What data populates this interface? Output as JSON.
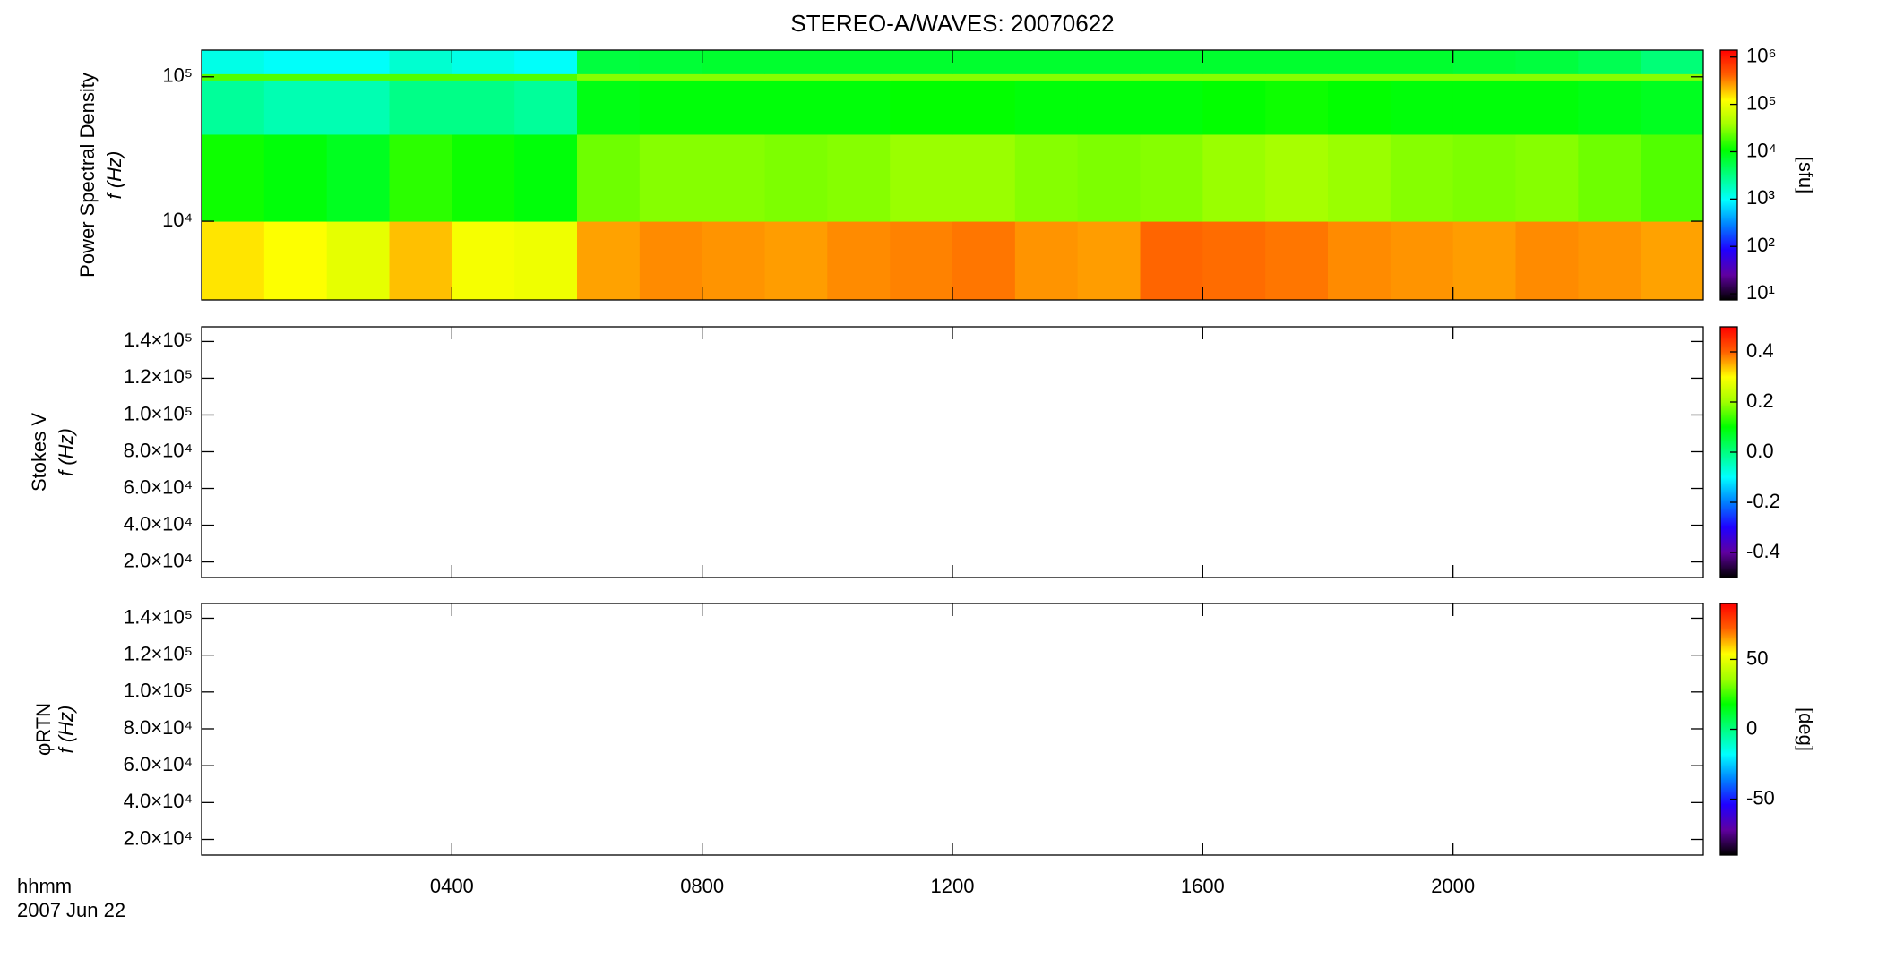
{
  "chart_data": [
    {
      "type": "heatmap",
      "title": "STEREO-A/WAVES: 20070622",
      "ylabel": [
        "Power Spectral Density",
        "f (Hz)"
      ],
      "x": [
        0,
        1,
        2,
        3,
        4,
        5,
        6,
        7,
        8,
        9,
        10,
        11,
        12,
        13,
        14,
        15,
        16,
        17,
        18,
        19,
        20,
        21,
        22,
        23,
        24
      ],
      "y": [
        2850,
        10000,
        40000,
        95000,
        105000,
        153000
      ],
      "values": [
        [
          150000,
          120000,
          90000,
          200000,
          110000,
          100000,
          250000,
          300000,
          280000,
          260000,
          300000,
          320000,
          350000,
          280000,
          260000,
          400000,
          380000,
          350000,
          300000,
          280000,
          260000,
          300000,
          280000,
          250000
        ],
        [
          12000,
          10000,
          8000,
          15000,
          12000,
          10000,
          25000,
          30000,
          30000,
          28000,
          30000,
          35000,
          35000,
          30000,
          28000,
          30000,
          35000,
          40000,
          35000,
          30000,
          28000,
          30000,
          25000,
          20000
        ],
        [
          2500,
          2000,
          2000,
          3000,
          3000,
          2500,
          9000,
          10000,
          10000,
          10000,
          10000,
          11000,
          11000,
          10000,
          10000,
          10000,
          11000,
          12000,
          11000,
          10000,
          10000,
          10000,
          9000,
          8000
        ],
        [
          20000,
          20000,
          20000,
          20000,
          20000,
          20000,
          30000,
          30000,
          30000,
          30000,
          30000,
          30000,
          30000,
          30000,
          30000,
          30000,
          30000,
          30000,
          30000,
          30000,
          30000,
          30000,
          30000,
          30000
        ],
        [
          1200,
          1000,
          1000,
          1500,
          1200,
          1000,
          6000,
          6500,
          7000,
          7000,
          7000,
          7000,
          7000,
          7000,
          7000,
          7000,
          7000,
          7000,
          7000,
          7000,
          6500,
          6000,
          5000,
          3500
        ]
      ],
      "ylim": [
        2850,
        153000
      ],
      "ylog": true,
      "yticks": [
        {
          "value": 10000,
          "label": "10⁴"
        },
        {
          "value": 100000,
          "label": "10⁵"
        }
      ],
      "zlim": [
        7.4,
        1400000
      ],
      "zlog": true,
      "zticks": [
        {
          "value": 10,
          "label": "10¹"
        },
        {
          "value": 100,
          "label": "10²"
        },
        {
          "value": 1000,
          "label": "10³"
        },
        {
          "value": 10000,
          "label": "10⁴"
        },
        {
          "value": 100000,
          "label": "10⁵"
        },
        {
          "value": 1000000,
          "label": "10⁶"
        }
      ],
      "zlabel": "[sfu]",
      "colormap": [
        "#000000",
        "#6000a0",
        "#2000ff",
        "#0080ff",
        "#00ffff",
        "#00ff80",
        "#00ff00",
        "#a0ff00",
        "#ffff00",
        "#ff6000",
        "#ff0000"
      ]
    },
    {
      "type": "heatmap",
      "ylabel": [
        "Stokes V",
        "f (Hz)"
      ],
      "ylim": [
        11500,
        148000
      ],
      "ylog": false,
      "yticks": [
        {
          "value": 20000,
          "label": "2.0×10⁴"
        },
        {
          "value": 40000,
          "label": "4.0×10⁴"
        },
        {
          "value": 60000,
          "label": "6.0×10⁴"
        },
        {
          "value": 80000,
          "label": "8.0×10⁴"
        },
        {
          "value": 100000,
          "label": "1.0×10⁵"
        },
        {
          "value": 120000,
          "label": "1.2×10⁵"
        },
        {
          "value": 140000,
          "label": "1.4×10⁵"
        }
      ],
      "zlim": [
        -0.5,
        0.5
      ],
      "zlog": false,
      "zticks": [
        -0.4,
        -0.2,
        {
          "value": 0,
          "label": "0.0"
        },
        0.2,
        0.4
      ]
    },
    {
      "type": "heatmap",
      "ylabel": [
        "φRTN",
        "f (Hz)"
      ],
      "ylim": [
        11500,
        148000
      ],
      "ylog": false,
      "yticks": [
        {
          "value": 20000,
          "label": "2.0×10⁴"
        },
        {
          "value": 40000,
          "label": "4.0×10⁴"
        },
        {
          "value": 60000,
          "label": "6.0×10⁴"
        },
        {
          "value": 80000,
          "label": "8.0×10⁴"
        },
        {
          "value": 100000,
          "label": "1.0×10⁵"
        },
        {
          "value": 120000,
          "label": "1.2×10⁵"
        },
        {
          "value": 140000,
          "label": "1.4×10⁵"
        }
      ],
      "zlim": [
        -90,
        90
      ],
      "zlog": false,
      "zticks": [
        -50,
        0,
        50
      ],
      "zlabel": "[deg]",
      "xlim": [
        0,
        24
      ],
      "xticks": [
        {
          "value": 4,
          "label": "0400"
        },
        {
          "value": 8,
          "label": "0800"
        },
        {
          "value": 12,
          "label": "1200"
        },
        {
          "value": 16,
          "label": "1600"
        },
        {
          "value": 20,
          "label": "2000"
        }
      ],
      "xlabel": [
        "hhmm",
        "2007 Jun 22"
      ]
    }
  ]
}
